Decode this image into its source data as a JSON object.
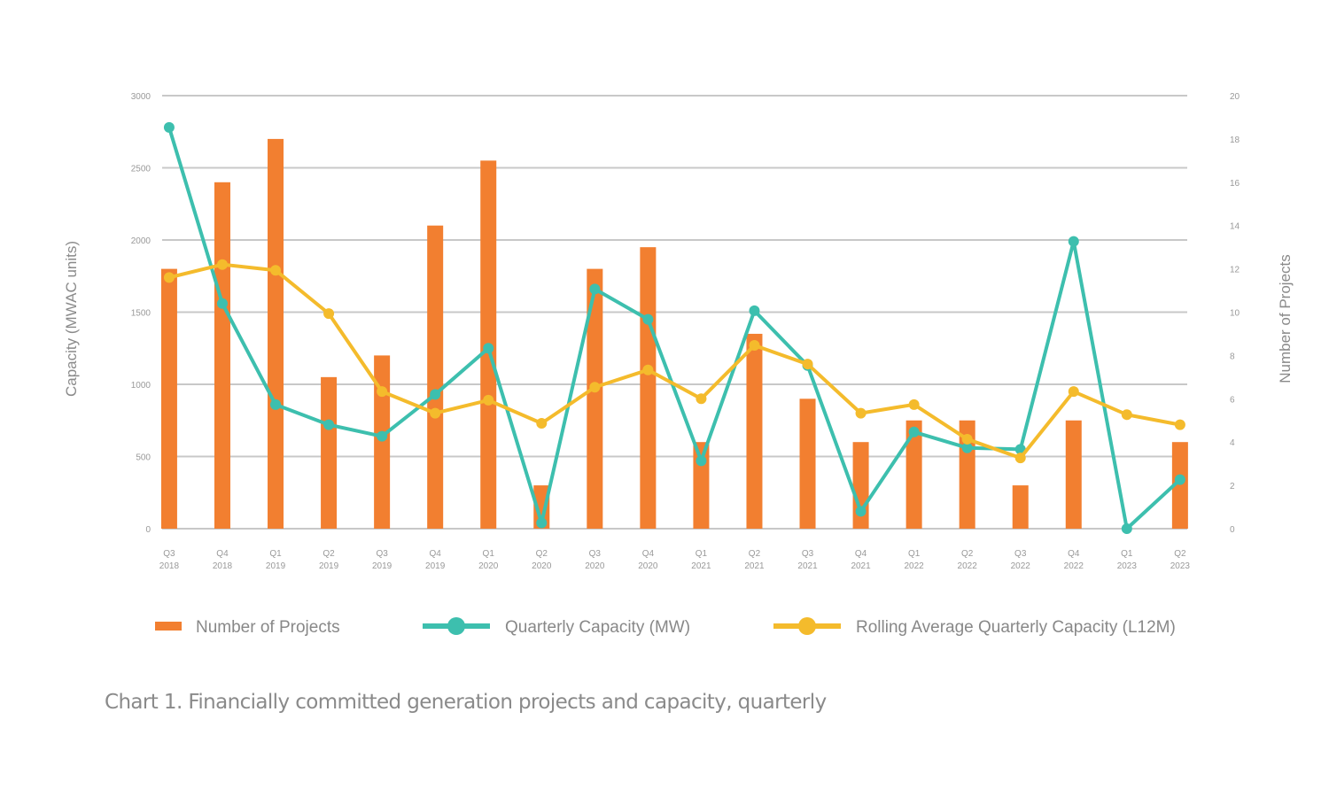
{
  "chart_data": {
    "type": "bar+line",
    "categories": [
      "Q3 2018",
      "Q4 2018",
      "Q1 2019",
      "Q2 2019",
      "Q3 2019",
      "Q4 2019",
      "Q1 2020",
      "Q2 2020",
      "Q3 2020",
      "Q4 2020",
      "Q1 2021",
      "Q2 2021",
      "Q3 2021",
      "Q4 2021",
      "Q1 2022",
      "Q2 2022",
      "Q3 2022",
      "Q4 2022",
      "Q1 2023",
      "Q2 2023"
    ],
    "ylabel_left": "Capacity (MWAC units)",
    "ylabel_right": "Number of Projects",
    "ylim_left": [
      0,
      3000
    ],
    "yticks_left": [
      "0",
      "500",
      "1000",
      "1500",
      "2000",
      "2500",
      "3000"
    ],
    "ylim_right": [
      0,
      20
    ],
    "yticks_right": [
      "0",
      "2",
      "4",
      "6",
      "8",
      "10",
      "12",
      "14",
      "16",
      "18",
      "20"
    ],
    "grid": true,
    "legend_position": "bottom",
    "series": [
      {
        "name": "Number of Projects",
        "type": "bar",
        "axis": "right",
        "color": "#f27f30",
        "values": [
          12,
          16,
          18,
          7,
          8,
          14,
          17,
          2,
          12,
          13,
          4,
          9,
          6,
          4,
          5,
          5,
          2,
          5,
          0,
          4
        ]
      },
      {
        "name": "Quarterly Capacity (MW)",
        "type": "line",
        "axis": "left",
        "color": "#3dbfae",
        "values": [
          2780,
          1560,
          860,
          720,
          640,
          930,
          1250,
          40,
          1660,
          1450,
          470,
          1510,
          1130,
          120,
          670,
          560,
          550,
          1990,
          0,
          340
        ]
      },
      {
        "name": "Rolling Average Quarterly Capacity (L12M)",
        "type": "line",
        "axis": "left",
        "color": "#f4bb2c",
        "values": [
          1740,
          1830,
          1790,
          1490,
          950,
          800,
          890,
          730,
          980,
          1100,
          900,
          1270,
          1140,
          800,
          860,
          620,
          490,
          950,
          790,
          720
        ]
      }
    ]
  },
  "caption": "Chart 1. Financially committed generation projects and capacity, quarterly"
}
